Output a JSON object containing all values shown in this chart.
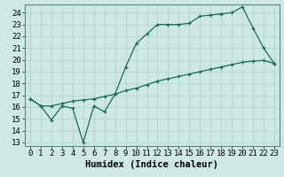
{
  "xlabel": "Humidex (Indice chaleur)",
  "background_color": "#cde8e5",
  "grid_color": "#b0d0cc",
  "line_color": "#1a6b5a",
  "xlim": [
    -0.5,
    23.5
  ],
  "ylim": [
    12.7,
    24.7
  ],
  "yticks": [
    13,
    14,
    15,
    16,
    17,
    18,
    19,
    20,
    21,
    22,
    23,
    24
  ],
  "xticks": [
    0,
    1,
    2,
    3,
    4,
    5,
    6,
    7,
    8,
    9,
    10,
    11,
    12,
    13,
    14,
    15,
    16,
    17,
    18,
    19,
    20,
    21,
    22,
    23
  ],
  "line1_x": [
    0,
    1,
    2,
    3,
    4,
    5,
    6,
    7,
    8,
    9,
    10,
    11,
    12,
    13,
    14,
    15,
    16,
    17,
    18,
    19,
    20,
    21,
    22,
    23
  ],
  "line1_y": [
    16.7,
    16.1,
    14.9,
    16.1,
    15.9,
    13.0,
    16.1,
    15.6,
    17.1,
    19.4,
    21.4,
    22.2,
    23.0,
    23.0,
    23.0,
    23.1,
    23.7,
    23.8,
    23.9,
    24.0,
    24.5,
    22.7,
    21.0,
    19.7
  ],
  "line2_x": [
    0,
    1,
    2,
    3,
    4,
    5,
    6,
    7,
    8,
    9,
    10,
    11,
    12,
    13,
    14,
    15,
    16,
    17,
    18,
    19,
    20,
    21,
    22,
    23
  ],
  "line2_y": [
    16.7,
    16.1,
    16.1,
    16.3,
    16.5,
    16.6,
    16.7,
    16.9,
    17.1,
    17.4,
    17.6,
    17.9,
    18.2,
    18.4,
    18.6,
    18.8,
    19.0,
    19.2,
    19.4,
    19.6,
    19.8,
    19.9,
    19.95,
    19.7
  ],
  "marker": "+",
  "markersize": 3,
  "linewidth": 0.9,
  "xlabel_fontsize": 7.5,
  "tick_fontsize": 6.5
}
